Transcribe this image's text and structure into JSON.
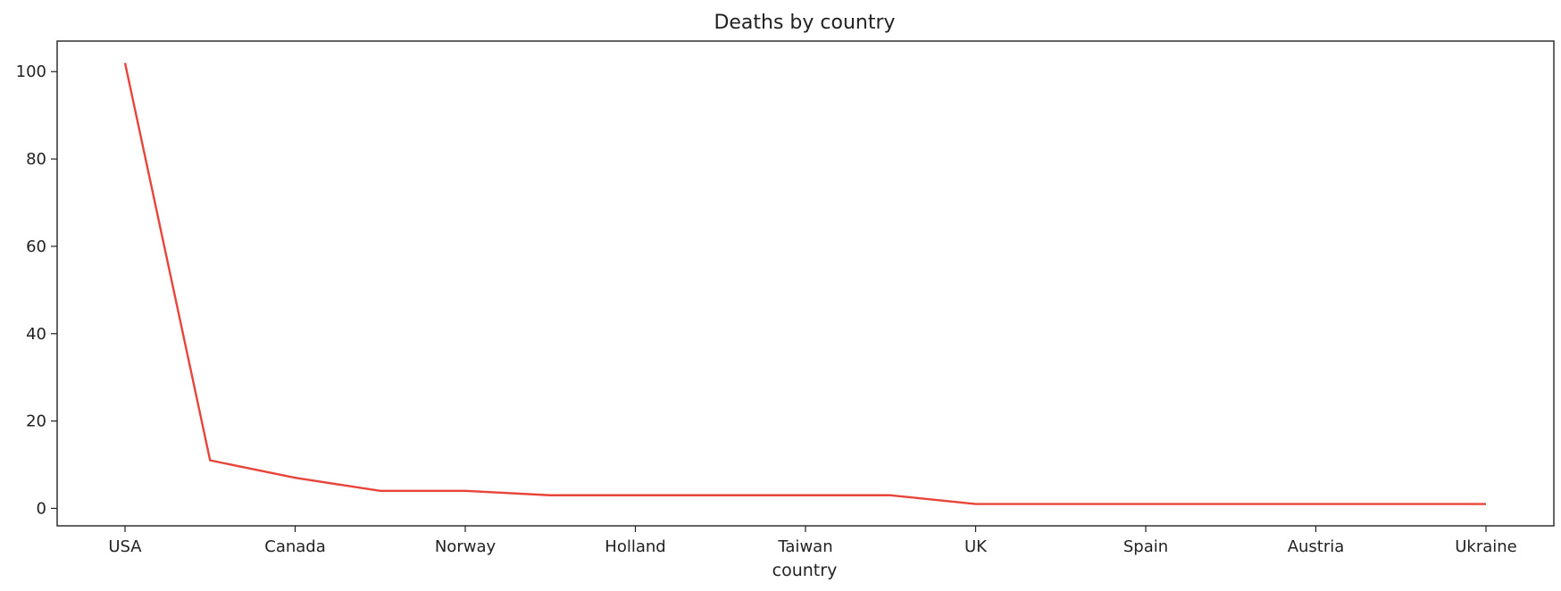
{
  "chart_data": {
    "type": "line",
    "title": "Deaths by country",
    "xlabel": "country",
    "ylabel": "",
    "x": [
      "USA",
      "",
      "Canada",
      "",
      "Norway",
      "",
      "Holland",
      "",
      "Taiwan",
      "",
      "UK",
      "",
      "Spain",
      "",
      "Austria",
      "",
      "Ukraine"
    ],
    "tick_labels": [
      "USA",
      "Canada",
      "Norway",
      "Holland",
      "Taiwan",
      "UK",
      "Spain",
      "Austria",
      "Ukraine"
    ],
    "series": [
      {
        "values": [
          102,
          11,
          7,
          4,
          4,
          3,
          3,
          3,
          3,
          3,
          1,
          1,
          1,
          1,
          1,
          1,
          1
        ]
      }
    ],
    "ylim": [
      -4,
      107
    ],
    "yticks": [
      0,
      20,
      40,
      60,
      80,
      100
    ],
    "grid": false,
    "line_color": "#e8443a"
  }
}
